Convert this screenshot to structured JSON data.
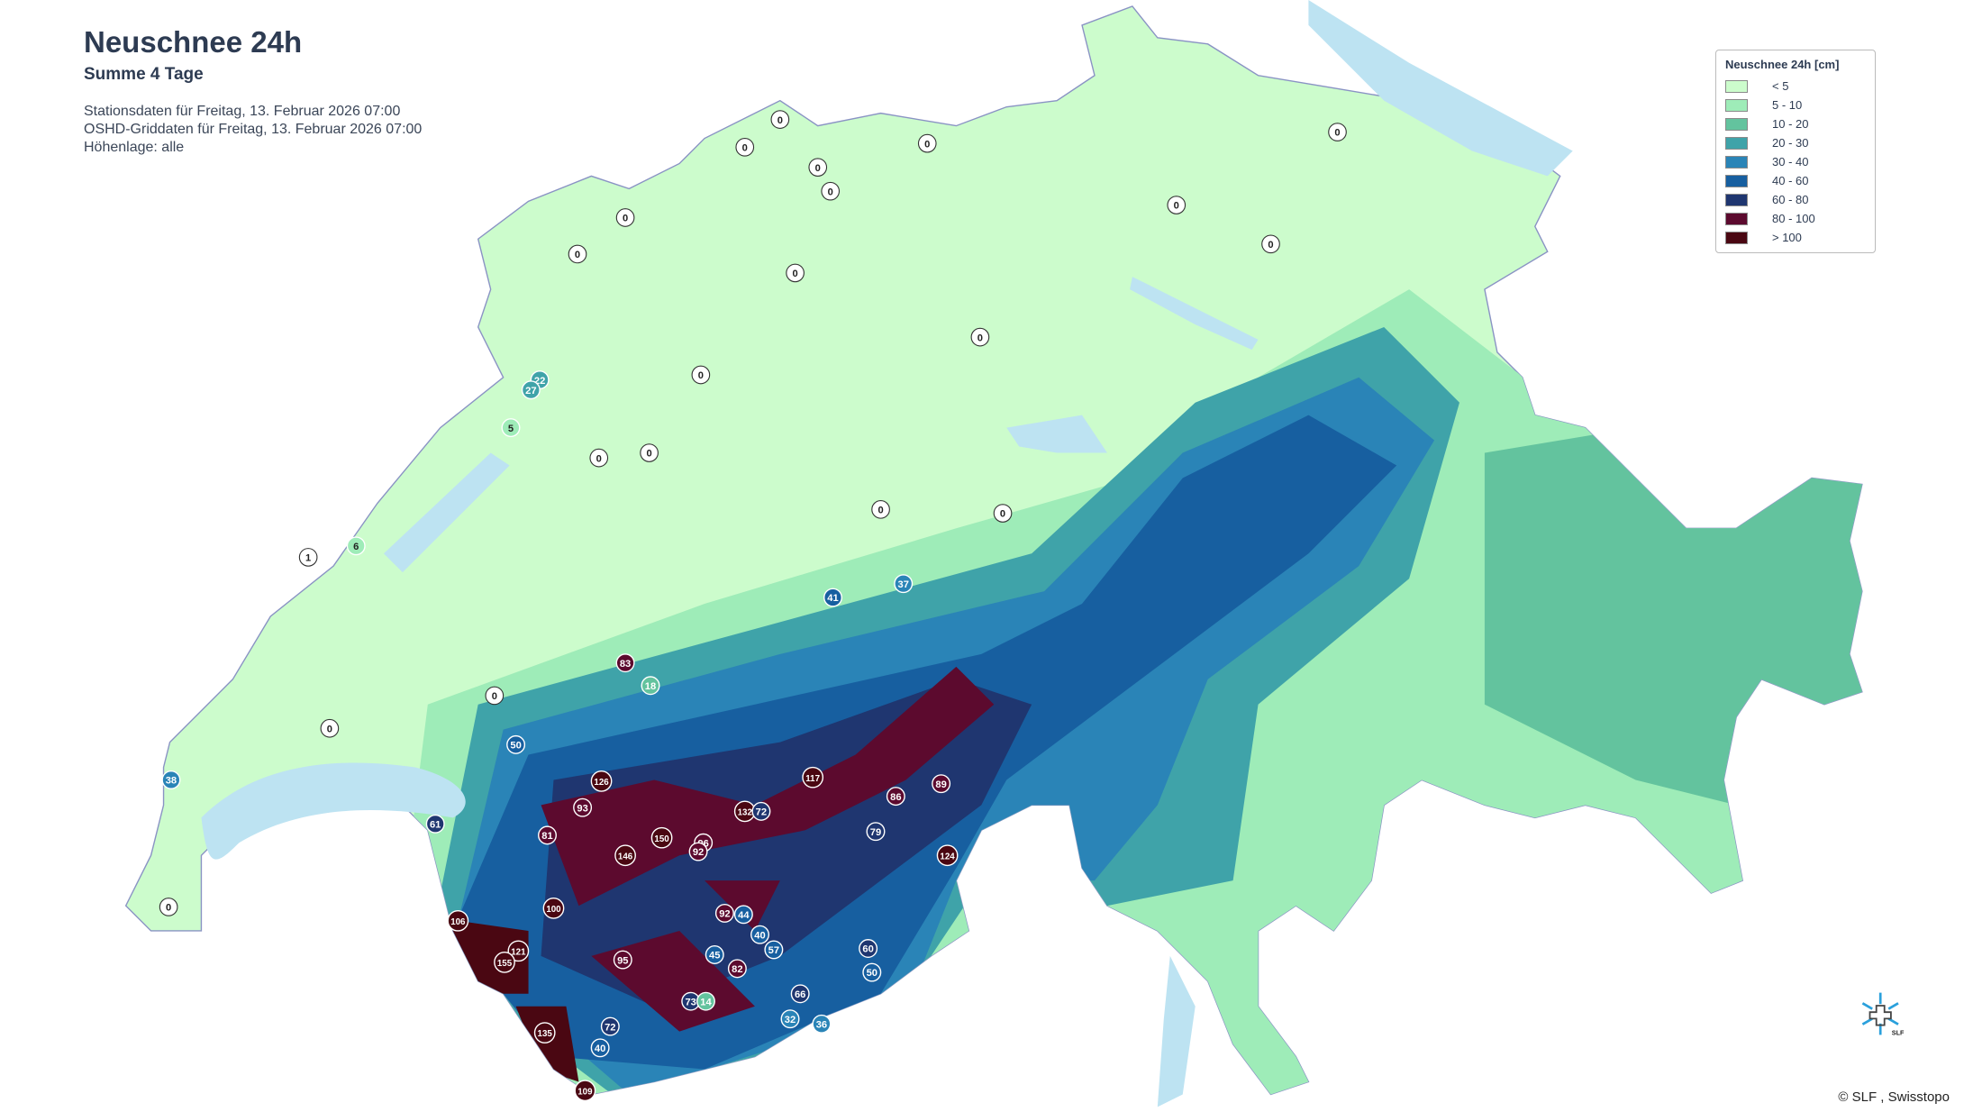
{
  "header": {
    "title": "Neuschnee 24h",
    "subtitle": "Summe 4 Tage",
    "station_date": "Stationsdaten für Freitag, 13. Februar 2026 07:00",
    "grid_date": "OSHD-Griddaten für Freitag, 13. Februar 2026 07:00",
    "elevation": "Höhenlage: alle"
  },
  "legend": {
    "title": "Neuschnee 24h [cm]",
    "items": [
      {
        "label": "< 5",
        "color": "#ccfccc"
      },
      {
        "label": "5 - 10",
        "color": "#9eecb8"
      },
      {
        "label": "10 - 20",
        "color": "#63c39e"
      },
      {
        "label": "20 - 30",
        "color": "#3fa3a9"
      },
      {
        "label": "30 - 40",
        "color": "#2a84b7"
      },
      {
        "label": "40 - 60",
        "color": "#175fa0"
      },
      {
        "label": "60 - 80",
        "color": "#1f3670"
      },
      {
        "label": "80 - 100",
        "color": "#5c0a2e"
      },
      {
        "label": "> 100",
        "color": "#4a0712"
      }
    ]
  },
  "map": {
    "lake_color": "#bde3f2",
    "border_color": "#8a93c4",
    "stations": [
      "0",
      "0",
      "0",
      "0",
      "0",
      "0",
      "0",
      "0",
      "0",
      "0",
      "0",
      "0",
      "0",
      "0",
      "0",
      "0",
      "0",
      "0",
      "0",
      "0",
      "22",
      "27",
      "5",
      "1",
      "6",
      "38",
      "61",
      "50",
      "83",
      "18",
      "126",
      "93",
      "81",
      "150",
      "146",
      "96",
      "92",
      "100",
      "106",
      "121",
      "155",
      "95",
      "135",
      "109",
      "72",
      "40",
      "73",
      "14",
      "82",
      "92",
      "44",
      "57",
      "60",
      "50",
      "36",
      "32",
      "66",
      "40",
      "45",
      "117",
      "132",
      "72",
      "86",
      "89",
      "79",
      "124",
      "41",
      "37"
    ]
  },
  "attribution": "© SLF , Swisstopo",
  "logo_text": "SLF"
}
